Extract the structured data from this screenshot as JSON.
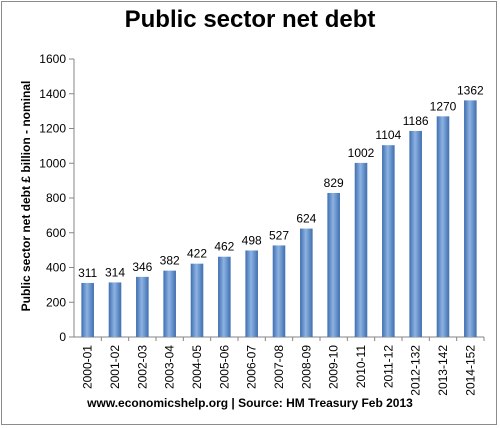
{
  "chart_data": {
    "type": "bar",
    "title": "Public sector net debt",
    "ylabel": "Public sector net debt £ billion - nominal",
    "xlabel": "",
    "categories": [
      "2000-01",
      "2001-02",
      "2002-03",
      "2003-04",
      "2004-05",
      "2005-06",
      "2006-07",
      "2007-08",
      "2008-09",
      "2009-10",
      "2010-11",
      "2011-12",
      "2012-132",
      "2013-142",
      "2014-152"
    ],
    "values": [
      311,
      314,
      346,
      382,
      422,
      462,
      498,
      527,
      624,
      829,
      1002,
      1104,
      1186,
      1270,
      1362
    ],
    "ylim": [
      0,
      1600
    ],
    "yticks": [
      0,
      200,
      400,
      600,
      800,
      1000,
      1200,
      1400,
      1600
    ],
    "grid": false,
    "legend": "none",
    "bar_color_light": "#8db3e2",
    "bar_color_dark": "#3f6fb0",
    "source": "www.economicshelp.org | Source:  HM Treasury Feb 2013"
  }
}
